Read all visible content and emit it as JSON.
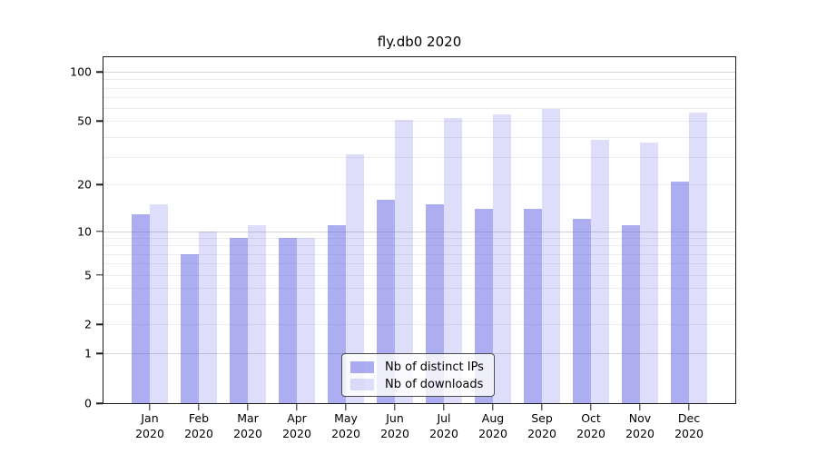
{
  "chart_data": {
    "type": "bar",
    "title": "fly.db0 2020",
    "categories": [
      "Jan 2020",
      "Feb 2020",
      "Mar 2020",
      "Apr 2020",
      "May 2020",
      "Jun 2020",
      "Jul 2020",
      "Aug 2020",
      "Sep 2020",
      "Oct 2020",
      "Nov 2020",
      "Dec 2020"
    ],
    "series": [
      {
        "name": "Nb of distinct IPs",
        "fill": "rgba(92,92,228,0.5)",
        "values": [
          13,
          7,
          9,
          9,
          11,
          16,
          15,
          14,
          14,
          12,
          11,
          21
        ]
      },
      {
        "name": "Nb of downloads",
        "fill": "rgba(92,92,228,0.2)",
        "values": [
          15,
          10,
          11,
          9,
          31,
          51,
          52,
          55,
          59,
          38,
          37,
          56
        ]
      }
    ],
    "xlabel": "",
    "ylabel": "",
    "yscale": "symlog (log1p)",
    "ylim": [
      0,
      124
    ],
    "y_ticks": [
      0,
      1,
      2,
      5,
      10,
      20,
      50,
      100
    ],
    "y_gridlines_major": [
      1,
      10,
      100
    ],
    "y_gridlines_minor": [
      2,
      3,
      4,
      5,
      6,
      7,
      8,
      9,
      20,
      30,
      40,
      50,
      60,
      70,
      80,
      90
    ],
    "grid": true,
    "bar_layout": "grouped side-by-side",
    "legend_position": "lower center"
  }
}
